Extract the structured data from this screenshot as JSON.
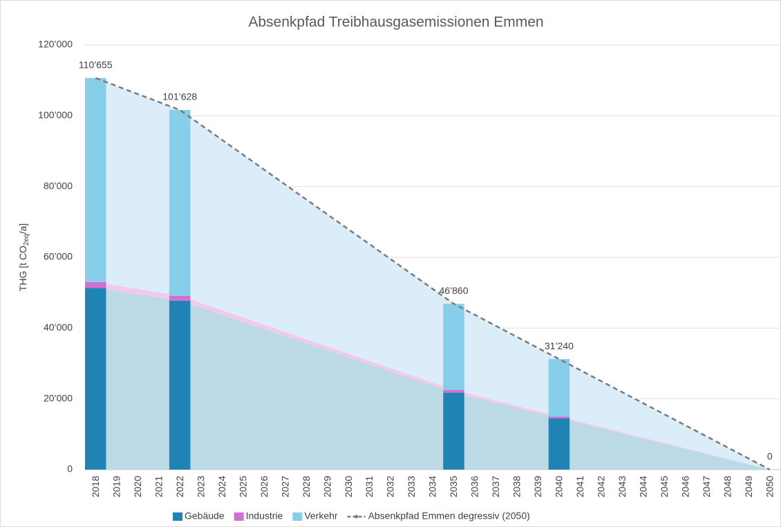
{
  "chart_data": {
    "type": "bar",
    "title": "Absenkpfad Treibhausgasemissionen Emmen",
    "y_axis_label": {
      "text": "THG [t CO",
      "sub": "2eq",
      "after": "/a]"
    },
    "categories": [
      "2018",
      "2019",
      "2020",
      "2021",
      "2022",
      "2023",
      "2024",
      "2025",
      "2026",
      "2027",
      "2028",
      "2029",
      "2030",
      "2031",
      "2032",
      "2033",
      "2034",
      "2035",
      "2036",
      "2037",
      "2038",
      "2039",
      "2040",
      "2041",
      "2042",
      "2043",
      "2044",
      "2045",
      "2046",
      "2047",
      "2048",
      "2049",
      "2050"
    ],
    "ylim": [
      0,
      120000
    ],
    "yticks": [
      0,
      {
        "value": 20000,
        "label": "20’000"
      },
      {
        "value": 40000,
        "label": "40’000"
      },
      {
        "value": 60000,
        "label": "60’000"
      },
      {
        "value": 80000,
        "label": "80’000"
      },
      {
        "value": 100000,
        "label": "100’000"
      },
      {
        "value": 120000,
        "label": "120’000"
      }
    ],
    "grid": true,
    "stacked": true,
    "legend": "bottom",
    "series": [
      {
        "name": "Gebäude",
        "color": "#1f83b4",
        "area_color": "#bcd9e6",
        "values": [
          51300,
          null,
          null,
          null,
          47700,
          null,
          null,
          null,
          null,
          null,
          null,
          null,
          null,
          null,
          null,
          null,
          null,
          21700,
          null,
          null,
          null,
          null,
          14500,
          null,
          null,
          null,
          null,
          null,
          null,
          null,
          null,
          null,
          0
        ]
      },
      {
        "name": "Industrie",
        "color": "#d36fd1",
        "area_color": "#f2c9ee",
        "values": [
          1700,
          null,
          null,
          null,
          1400,
          null,
          null,
          null,
          null,
          null,
          null,
          null,
          null,
          null,
          null,
          null,
          null,
          800,
          null,
          null,
          null,
          null,
          500,
          null,
          null,
          null,
          null,
          null,
          null,
          null,
          null,
          null,
          0
        ]
      },
      {
        "name": "Verkehr",
        "color": "#87ceeb",
        "values": [
          57655,
          null,
          null,
          null,
          52528,
          null,
          null,
          null,
          null,
          null,
          null,
          null,
          null,
          null,
          null,
          null,
          null,
          24360,
          null,
          null,
          null,
          null,
          16240,
          null,
          null,
          null,
          null,
          null,
          null,
          null,
          null,
          null,
          0
        ]
      },
      {
        "name": "Absenkpfad Emmen degressiv (2050)",
        "type": "line",
        "color": "#7a7a7a",
        "area_color": "#dbedf9",
        "dashed": true,
        "values": [
          110655,
          108398,
          106141,
          103885,
          101628,
          97415,
          93202,
          88990,
          84777,
          80564,
          76351,
          72138,
          67925,
          63713,
          59500,
          55287,
          51073,
          46860,
          43736,
          40612,
          37488,
          34364,
          31240,
          28116,
          24992,
          21868,
          18744,
          15620,
          12496,
          9372,
          6248,
          3124,
          0
        ],
        "value_labels": [
          "110’655",
          null,
          null,
          null,
          "101’628",
          null,
          null,
          null,
          null,
          null,
          null,
          null,
          null,
          null,
          null,
          null,
          null,
          "46’860",
          null,
          null,
          null,
          null,
          "31’240",
          null,
          null,
          null,
          null,
          null,
          null,
          null,
          null,
          null,
          "0"
        ]
      }
    ]
  }
}
